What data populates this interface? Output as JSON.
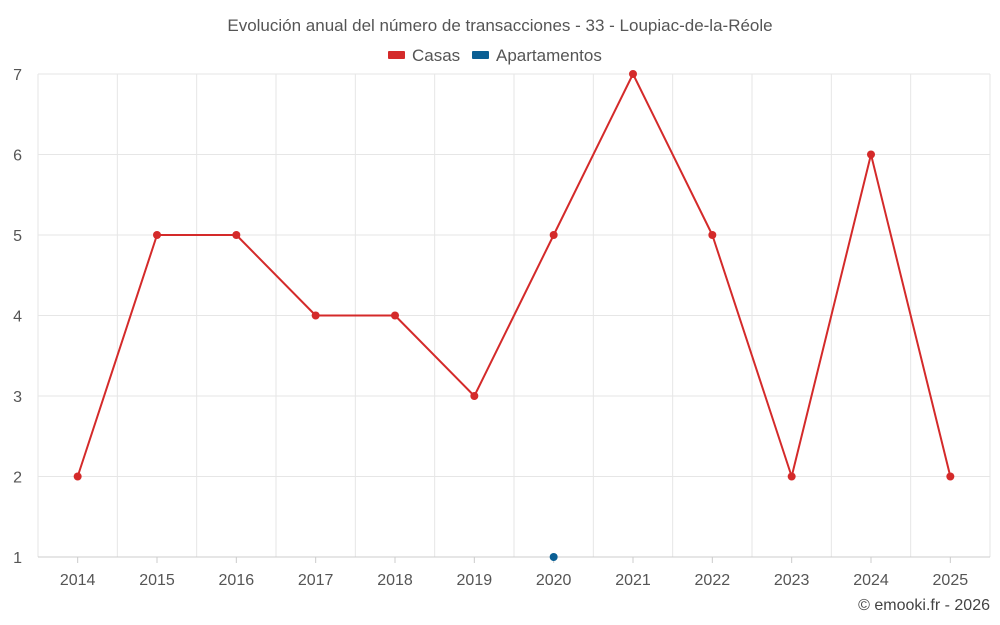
{
  "chart_data": {
    "type": "line",
    "title": "Evolución anual del número de transacciones - 33 - Loupiac-de-la-Réole",
    "categories": [
      "2014",
      "2015",
      "2016",
      "2017",
      "2018",
      "2019",
      "2020",
      "2021",
      "2022",
      "2023",
      "2024",
      "2025"
    ],
    "series": [
      {
        "name": "Casas",
        "color": "#d42a2a",
        "values": [
          2,
          5,
          5,
          4,
          4,
          3,
          5,
          7,
          5,
          2,
          6,
          2
        ]
      },
      {
        "name": "Apartamentos",
        "color": "#0a5f94",
        "values": [
          null,
          null,
          null,
          null,
          null,
          null,
          1,
          null,
          null,
          null,
          null,
          null
        ]
      }
    ],
    "y_ticks": [
      "1",
      "2",
      "3",
      "4",
      "5",
      "6",
      "7"
    ],
    "ylim": [
      1,
      7
    ],
    "grid": true,
    "legend_position": "top-center",
    "credit": "© emooki.fr - 2026"
  }
}
